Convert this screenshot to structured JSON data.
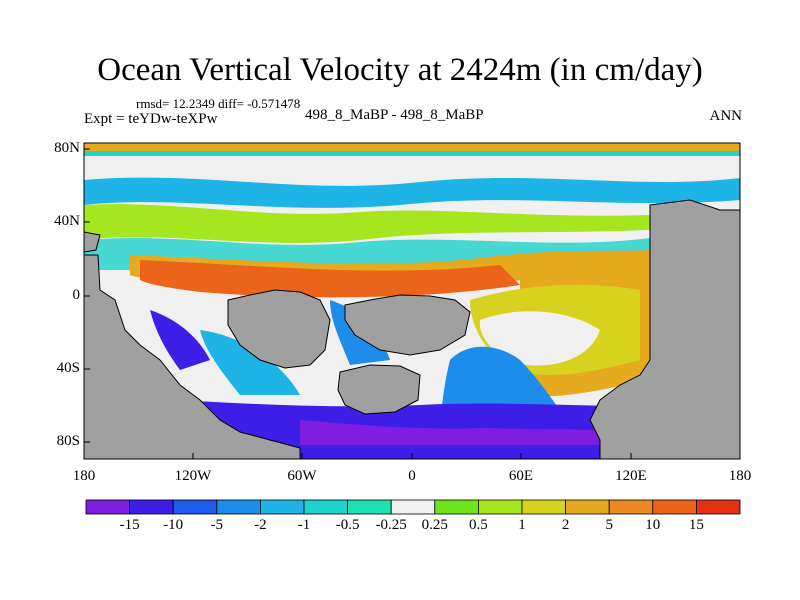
{
  "title": "Ocean Vertical Velocity at 2424m (in cm/day)",
  "stats": "rmsd= 12.2349 diff= -0.571478",
  "expt": "Expt = teYDw-teXPw",
  "cases": "498_8_MaBP - 498_8_MaBP",
  "season": "ANN",
  "axes": {
    "y_ticks": [
      "80N",
      "40N",
      "0",
      "40S",
      "80S"
    ],
    "x_ticks": [
      "180",
      "120W",
      "60W",
      "0",
      "60E",
      "120E",
      "180"
    ]
  },
  "colorbar": {
    "labels": [
      "-15",
      "-10",
      "-5",
      "-2",
      "-1",
      "-0.5",
      "-0.25",
      "0.25",
      "0.5",
      "1",
      "2",
      "5",
      "10",
      "15"
    ],
    "colors": [
      "#7d1ee0",
      "#3c1ee6",
      "#1e5aeb",
      "#1e8ceb",
      "#1eb4e6",
      "#1ed2cd",
      "#1ee1af",
      "#f0f0f0",
      "#6ee61e",
      "#a5e61e",
      "#d7d21e",
      "#e6aa1e",
      "#eb8a1e",
      "#eb6419",
      "#e63214"
    ]
  },
  "colors": {
    "land": "#a0a0a0",
    "coastline": "#000000"
  }
}
